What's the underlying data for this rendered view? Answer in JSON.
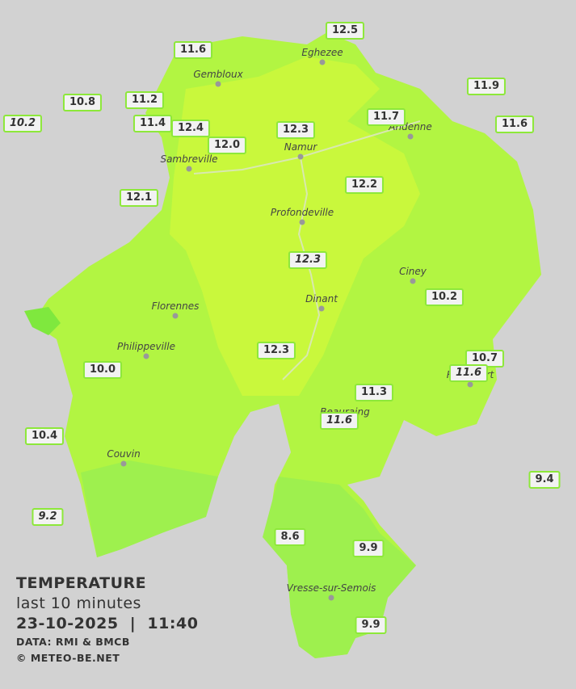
{
  "legend": {
    "title": "TEMPERATURE",
    "subtitle": "last 10 minutes",
    "datetime": "23-10-2025  |  11:40",
    "source": "DATA: RMI & BMCB",
    "credit": "© METEO-BE.NET"
  },
  "cities": [
    "Eghezee",
    "Gembloux",
    "Andenne",
    "Namur",
    "Sambreville",
    "Profondeville",
    "Ciney",
    "Dinant",
    "Florennes",
    "Philippeville",
    "Rochefort",
    "Beauraing",
    "Couvin",
    "Vresse-sur-Semois"
  ],
  "stations": [
    "12.5",
    "11.6",
    "11.9",
    "10.8",
    "11.2",
    "10.2",
    "11.4",
    "12.4",
    "12.3",
    "11.7",
    "11.6",
    "12.0",
    "12.2",
    "12.1",
    "12.3",
    "10.2",
    "10.7",
    "11.6",
    "12.3",
    "10.0",
    "11.3",
    "11.6",
    "10.4",
    "9.4",
    "9.2",
    "8.6",
    "9.9",
    "9.9"
  ]
}
